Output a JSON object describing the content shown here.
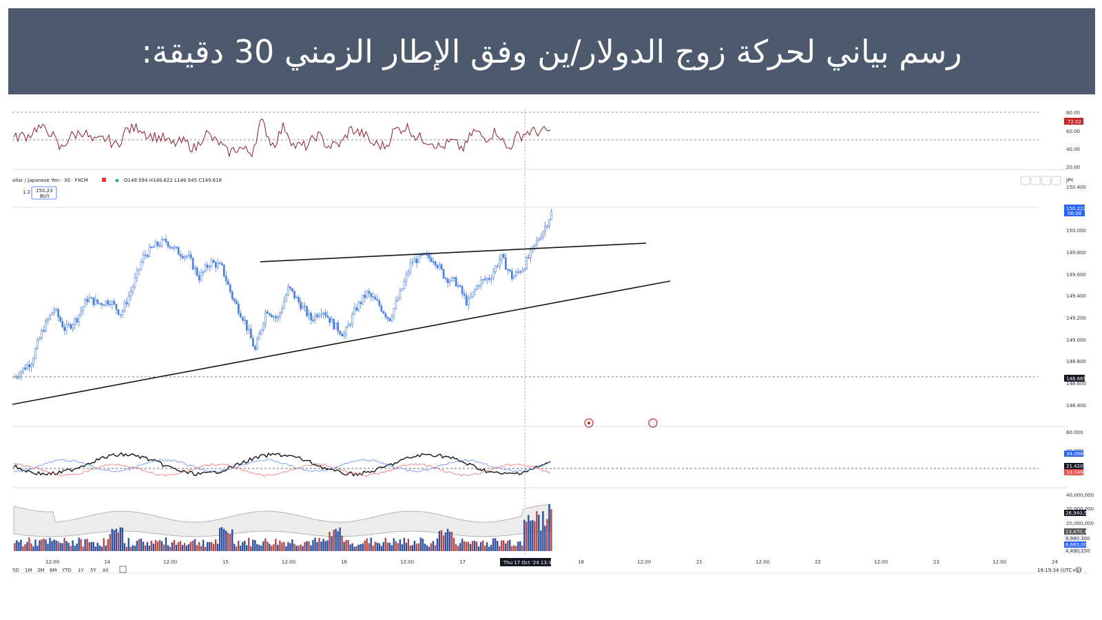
{
  "title": "رسم بياني لحركة زوج الدولار/ين وفق الإطار الزمني 30 دقيقة:",
  "legend": {
    "symbol": "ollar / Japanese Yen · 30 · FXCM",
    "ohlc": "O149.594  H149.622  L149.545  C149.618",
    "buy_price": "150.23",
    "buy_label": "BUY",
    "spread": "1.2"
  },
  "crosshair_date": "Thu 17 Oct '24   13:30",
  "clock": "18:19:34 (UTC+3)",
  "currency": "JPY",
  "range_buttons": [
    "5D",
    "1M",
    "3M",
    "6M",
    "YTD",
    "1Y",
    "5Y",
    "All"
  ],
  "x_axis": [
    "12:00",
    "14",
    "12:00",
    "15",
    "12:00",
    "16",
    "12:00",
    "17",
    "12:00",
    "18",
    "12:00",
    "21",
    "12:00",
    "22",
    "12:00",
    "23",
    "12:00",
    "24"
  ],
  "rsi_axis": {
    "ticks": [
      "80.00",
      "60.00",
      "40.00",
      "20.00"
    ],
    "current": "72.02"
  },
  "price_axis": {
    "ticks": [
      "150.400",
      "150.000",
      "149.800",
      "149.600",
      "149.400",
      "149.200",
      "149.000",
      "148.800",
      "148.600",
      "148.400"
    ],
    "current": "150.222",
    "countdown": "06:08",
    "line_label": "148.665"
  },
  "dmi_axis": {
    "ticks": [
      "60.000",
      "40.000"
    ],
    "labels": [
      "34.088",
      "21.420",
      "13.749"
    ]
  },
  "volume_axis": {
    "ticks": [
      "40,000,000",
      "20,000,000",
      "20,000,000"
    ],
    "labels": [
      "26,940,900",
      "13,470,450",
      "8,980,300",
      "6,665,000",
      "4,490,150"
    ]
  },
  "colors": {
    "banner": "#4d5a6e",
    "candle": "#4a7fe0",
    "rsi": "#8b1a2b",
    "up_vol": "#2e4f9e",
    "down_vol": "#b04a4a",
    "current_price": "#2962ff",
    "rsi_label": "#c62828"
  },
  "chart_data": {
    "type": "candlestick",
    "instrument": "USD/JPY",
    "timeframe": "30",
    "ylim": [
      148.3,
      150.45
    ],
    "swing_path": [
      [
        0,
        148.65
      ],
      [
        1,
        148.7
      ],
      [
        3,
        148.8
      ],
      [
        5,
        149.1
      ],
      [
        7,
        149.3
      ],
      [
        9,
        149.1
      ],
      [
        11,
        149.2
      ],
      [
        13,
        149.4
      ],
      [
        15,
        149.35
      ],
      [
        17,
        149.38
      ],
      [
        19,
        149.25
      ],
      [
        21,
        149.5
      ],
      [
        23,
        149.8
      ],
      [
        25,
        149.9
      ],
      [
        27,
        149.95
      ],
      [
        29,
        149.85
      ],
      [
        31,
        149.8
      ],
      [
        33,
        149.6
      ],
      [
        35,
        149.75
      ],
      [
        37,
        149.7
      ],
      [
        39,
        149.4
      ],
      [
        41,
        149.2
      ],
      [
        43,
        148.9
      ],
      [
        45,
        149.3
      ],
      [
        47,
        149.2
      ],
      [
        49,
        149.5
      ],
      [
        51,
        149.35
      ],
      [
        53,
        149.2
      ],
      [
        55,
        149.3
      ],
      [
        57,
        149.15
      ],
      [
        59,
        149.05
      ],
      [
        61,
        149.3
      ],
      [
        63,
        149.45
      ],
      [
        65,
        149.35
      ],
      [
        67,
        149.2
      ],
      [
        69,
        149.45
      ],
      [
        71,
        149.75
      ],
      [
        73,
        149.8
      ],
      [
        75,
        149.78
      ],
      [
        77,
        149.6
      ],
      [
        79,
        149.55
      ],
      [
        81,
        149.35
      ],
      [
        83,
        149.55
      ],
      [
        85,
        149.6
      ],
      [
        87,
        149.8
      ],
      [
        89,
        149.6
      ],
      [
        91,
        149.7
      ],
      [
        93,
        149.9
      ],
      [
        95,
        150.1
      ],
      [
        96,
        150.22
      ]
    ],
    "trendline_upper": [
      [
        149.75,
        "15 08:00"
      ],
      [
        149.9,
        "18 03:00"
      ]
    ],
    "trendline_lower": [
      [
        148.4,
        "13 22:00"
      ],
      [
        149.65,
        "18 06:00"
      ]
    ]
  }
}
